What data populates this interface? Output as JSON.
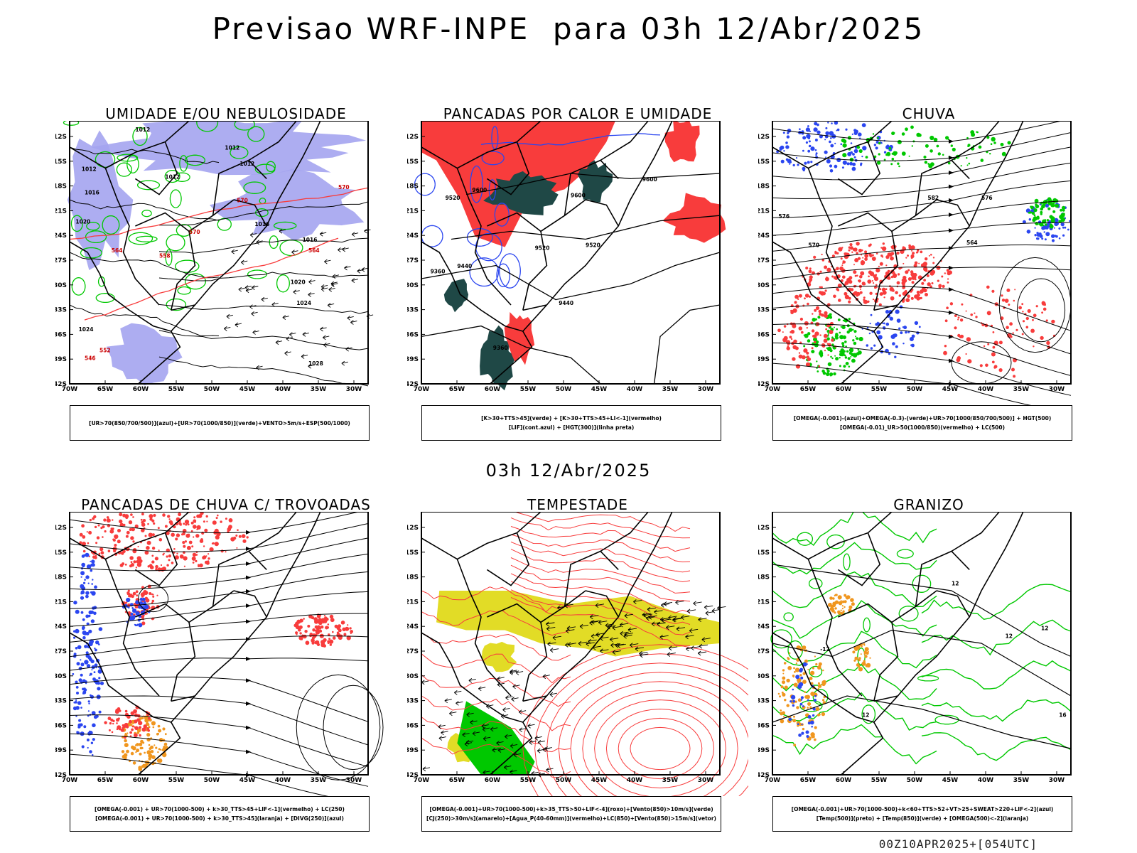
{
  "title": "Previsao WRF-INPE  para 03h 12/Abr/2025",
  "subtitle": "03h 12/Abr/2025",
  "footer": "00Z10APR2025+[054UTC]",
  "axes": {
    "lat_labels": [
      "12S",
      "15S",
      "18S",
      "21S",
      "24S",
      "27S",
      "30S",
      "33S",
      "36S",
      "39S",
      "42S"
    ],
    "lon_labels": [
      "70W",
      "65W",
      "60W",
      "55W",
      "50W",
      "45W",
      "40W",
      "35W",
      "30W"
    ]
  },
  "colors": {
    "blue": "#2b46f0",
    "green": "#00c800",
    "red": "#f83c3c",
    "purple": "#a4a4f0",
    "darkteal": "#1f4846",
    "yellow": "#e2dc26",
    "orange": "#f0961e",
    "black": "#000000"
  },
  "panels": [
    {
      "title": "UMIDADE E/OU NEBULOSIDADE",
      "legend": [
        "[UR>70(850/700/500)](azul)+[UR>70(1000/850)](verde)+VENTO>5m/s+ESP(500/1000)"
      ],
      "contour_labels": [
        "1012",
        "1012",
        "1012",
        "1012",
        "1012",
        "1016",
        "1016",
        "1016",
        "1020",
        "1020",
        "1024",
        "1024",
        "1028",
        "570",
        "570",
        "570",
        "564",
        "564",
        "558",
        "552",
        "546"
      ]
    },
    {
      "title": "PANCADAS POR CALOR E UMIDADE",
      "legend": [
        "[K>30+TTS>45](verde) + [K>30+TTS>45+LI<-1](vermelho)",
        "[LIF](cont.azul) + [HGT(300)](linha preta)"
      ],
      "contour_labels": [
        "9600",
        "9600",
        "9600",
        "9520",
        "9520",
        "9520",
        "9440",
        "9440",
        "9360",
        "9360"
      ]
    },
    {
      "title": "CHUVA",
      "legend": [
        "[OMEGA(-0.001)-(azul)+OMEGA(-0.3)-(verde)+UR>70(1000/850/700/500)] + HGT(500)",
        "[OMEGA(-0.01)_UR>50(1000/850)(vermelho) + LC(500)"
      ],
      "contour_labels": [
        "582",
        "576",
        "576",
        "570",
        "564"
      ]
    },
    {
      "title": "PANCADAS DE CHUVA C/ TROVOADAS",
      "legend": [
        "[OMEGA(-0.001) + UR>70(1000-500) + k>30_TTS>45+LIF<-1](vermelho) + LC(250)",
        "[OMEGA(-0.001) + UR>70(1000-500) + k>30_TTS>45](laranja) + [DIVG(250)](azul)"
      ],
      "contour_labels": []
    },
    {
      "title": "TEMPESTADE",
      "legend": [
        "[OMEGA(-0.001)+UR>70(1000-500)+k>35_TTS>50+LIF<-4](roxo)+[Vento(850)>10m/s](verde)",
        "[CJ(250)>30m/s](amarelo)+[Agua_P(40-60mm)](vermelho)+LC(850)+[Vento(850)>15m/s](vetor)"
      ],
      "contour_labels": []
    },
    {
      "title": "GRANIZO",
      "legend": [
        "[OMEGA(-0.001)+UR>70(1000-500)+k<60+TTS>52+VT>25+SWEAT>220+LIF<-2](azul)",
        "[Temp(500)](preto) + [Temp(850)](verde) + [OMEGA(500)<-2](laranja)"
      ],
      "contour_labels": [
        "-12",
        "12",
        "12",
        "12",
        "12",
        "16"
      ]
    }
  ]
}
